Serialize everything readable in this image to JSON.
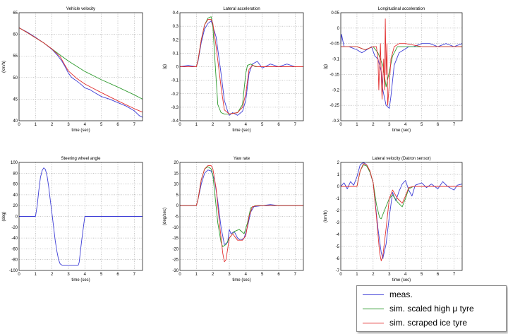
{
  "colors": {
    "meas": "#3d3dd6",
    "high": "#2e9a2e",
    "ice": "#e23030"
  },
  "legend": {
    "items": [
      {
        "label": "meas.",
        "color": "#3d3dd6"
      },
      {
        "label": "sim. scaled high μ tyre",
        "color": "#2e9a2e"
      },
      {
        "label": "sim. scraped ice tyre",
        "color": "#e23030"
      }
    ]
  },
  "chart_data": [
    {
      "type": "line",
      "title": "Vehicle velocity",
      "xlabel": "time (sec)",
      "ylabel": "(km/h)",
      "xlim": [
        0,
        7.5
      ],
      "ylim": [
        40,
        65
      ],
      "xticks": [
        0,
        1,
        2,
        3,
        4,
        5,
        6,
        7
      ],
      "yticks": [
        40,
        45,
        50,
        55,
        60,
        65
      ],
      "grid": true,
      "series": [
        {
          "key": "meas",
          "x": [
            0,
            0.5,
            1,
            1.5,
            2,
            2.3,
            2.6,
            2.8,
            3,
            3.2,
            3.5,
            3.8,
            4,
            4.3,
            4.6,
            5,
            5.5,
            6,
            6.5,
            7,
            7.3,
            7.5
          ],
          "y": [
            61.5,
            60.5,
            59.3,
            58,
            56.5,
            55.3,
            53.8,
            52.5,
            51,
            50,
            49.2,
            48.3,
            47.6,
            47.2,
            46.5,
            45.6,
            45,
            44.2,
            43.4,
            42.3,
            41.2,
            40.8
          ]
        },
        {
          "key": "high",
          "x": [
            0,
            0.5,
            1,
            1.5,
            2,
            2.5,
            3,
            3.5,
            4,
            5,
            6,
            7,
            7.5
          ],
          "y": [
            61.5,
            60.4,
            59.2,
            58,
            56.6,
            55.2,
            53.8,
            52.6,
            51.4,
            49.5,
            47.8,
            46,
            45
          ]
        },
        {
          "key": "ice",
          "x": [
            0,
            0.5,
            1,
            1.5,
            2,
            2.5,
            2.8,
            3,
            3.5,
            4,
            5,
            6,
            7,
            7.5
          ],
          "y": [
            61.5,
            60.4,
            59.2,
            58,
            56.6,
            54.8,
            52.8,
            51.5,
            49.8,
            48.5,
            46.5,
            44.6,
            42.8,
            42
          ]
        }
      ]
    },
    {
      "type": "line",
      "title": "Lateral acceleration",
      "xlabel": "time (sec)",
      "ylabel": "(g)",
      "xlim": [
        0,
        7.5
      ],
      "ylim": [
        -0.4,
        0.4
      ],
      "xticks": [
        0,
        1,
        2,
        3,
        4,
        5,
        6,
        7
      ],
      "yticks": [
        -0.4,
        -0.3,
        -0.2,
        -0.1,
        0,
        0.1,
        0.2,
        0.3,
        0.4
      ],
      "grid": true,
      "series": [
        {
          "key": "meas",
          "x": [
            0,
            0.5,
            1,
            1.1,
            1.3,
            1.5,
            1.7,
            1.9,
            2.0,
            2.2,
            2.5,
            2.7,
            2.9,
            3.0,
            3.2,
            3.5,
            3.8,
            4.0,
            4.2,
            4.4,
            4.7,
            5.0,
            5.5,
            6,
            6.5,
            7,
            7.5
          ],
          "y": [
            0,
            0.01,
            0,
            0.04,
            0.18,
            0.28,
            0.32,
            0.34,
            0.3,
            0.22,
            -0.05,
            -0.25,
            -0.33,
            -0.36,
            -0.34,
            -0.36,
            -0.33,
            -0.25,
            -0.05,
            0.02,
            0.04,
            -0.01,
            0.02,
            0,
            0.02,
            0,
            0
          ]
        },
        {
          "key": "high",
          "x": [
            0,
            1,
            1.1,
            1.3,
            1.5,
            1.7,
            1.9,
            2.0,
            2.15,
            2.3,
            2.5,
            2.7,
            3,
            3.5,
            3.8,
            4.0,
            4.1,
            4.3,
            4.6,
            5,
            7.5
          ],
          "y": [
            0,
            0,
            0.05,
            0.2,
            0.31,
            0.36,
            0.37,
            0.3,
            0,
            -0.28,
            -0.34,
            -0.35,
            -0.35,
            -0.34,
            -0.28,
            -0.05,
            0.01,
            0.02,
            0,
            0,
            0
          ]
        },
        {
          "key": "ice",
          "x": [
            0,
            1,
            1.1,
            1.3,
            1.5,
            1.7,
            1.9,
            2.0,
            2.2,
            2.5,
            2.7,
            3,
            3.5,
            3.8,
            4.0,
            4.2,
            4.4,
            4.7,
            5,
            7.5
          ],
          "y": [
            0,
            0,
            0.05,
            0.2,
            0.31,
            0.35,
            0.35,
            0.32,
            0.15,
            -0.15,
            -0.32,
            -0.35,
            -0.34,
            -0.3,
            -0.2,
            -0.02,
            0.01,
            0,
            0,
            0
          ]
        }
      ]
    },
    {
      "type": "line",
      "title": "Longitudinal acceleration",
      "xlabel": "time (sec)",
      "ylabel": "(g)",
      "xlim": [
        0,
        7.5
      ],
      "ylim": [
        -0.3,
        0.05
      ],
      "xticks": [
        0,
        1,
        2,
        3,
        4,
        5,
        6,
        7
      ],
      "yticks": [
        -0.3,
        -0.25,
        -0.2,
        -0.15,
        -0.1,
        -0.05,
        0,
        0.05
      ],
      "grid": true,
      "series": [
        {
          "key": "meas",
          "x": [
            0,
            0.05,
            0.2,
            0.5,
            1.0,
            1.3,
            1.6,
            1.9,
            2.1,
            2.3,
            2.5,
            2.6,
            2.8,
            3.0,
            3.1,
            3.3,
            3.6,
            3.9,
            4.2,
            4.5,
            5,
            5.5,
            6,
            6.5,
            7,
            7.5
          ],
          "y": [
            -0.05,
            -0.02,
            -0.06,
            -0.06,
            -0.07,
            -0.08,
            -0.07,
            -0.06,
            -0.09,
            -0.1,
            -0.14,
            -0.2,
            -0.25,
            -0.26,
            -0.22,
            -0.12,
            -0.08,
            -0.07,
            -0.06,
            -0.06,
            -0.05,
            -0.05,
            -0.06,
            -0.05,
            -0.06,
            -0.05
          ]
        },
        {
          "key": "high",
          "x": [
            0,
            0.2,
            1,
            1.5,
            2,
            2.3,
            2.6,
            2.8,
            3.0,
            3.2,
            3.5,
            4,
            5,
            6,
            7,
            7.5
          ],
          "y": [
            -0.06,
            -0.06,
            -0.06,
            -0.07,
            -0.06,
            -0.08,
            -0.12,
            -0.19,
            -0.14,
            -0.09,
            -0.06,
            -0.06,
            -0.06,
            -0.06,
            -0.06,
            -0.06
          ]
        },
        {
          "key": "ice",
          "x": [
            0,
            1,
            1.5,
            2,
            2.2,
            2.3,
            2.35,
            2.45,
            2.5,
            2.55,
            2.65,
            2.7,
            2.75,
            2.8,
            2.85,
            2.9,
            3.0,
            3.1,
            3.3,
            3.6,
            4,
            5,
            6,
            7,
            7.5
          ],
          "y": [
            -0.06,
            -0.06,
            -0.07,
            -0.06,
            -0.06,
            -0.1,
            -0.2,
            -0.05,
            -0.15,
            -0.23,
            -0.1,
            -0.2,
            0.03,
            -0.15,
            -0.05,
            -0.25,
            -0.18,
            -0.1,
            -0.06,
            -0.05,
            -0.05,
            -0.06,
            -0.06,
            -0.06,
            -0.06
          ]
        }
      ]
    },
    {
      "type": "line",
      "title": "Steering wheel angle",
      "xlabel": "time (sec)",
      "ylabel": "(deg)",
      "xlim": [
        0,
        7.5
      ],
      "ylim": [
        -100,
        100
      ],
      "xticks": [
        0,
        1,
        2,
        3,
        4,
        5,
        6,
        7
      ],
      "yticks": [
        -100,
        -80,
        -60,
        -40,
        -20,
        0,
        20,
        40,
        60,
        80,
        100
      ],
      "grid": true,
      "series": [
        {
          "key": "meas",
          "x": [
            0,
            1.0,
            1.1,
            1.2,
            1.3,
            1.4,
            1.5,
            1.6,
            1.7,
            1.8,
            1.9,
            2.0,
            2.1,
            2.2,
            2.3,
            2.4,
            2.5,
            2.6,
            2.8,
            3.0,
            3.2,
            3.4,
            3.6,
            3.65,
            3.8,
            3.95,
            4.0,
            4.5,
            5,
            6,
            7,
            7.5
          ],
          "y": [
            0,
            0,
            20,
            48,
            72,
            85,
            90,
            87,
            75,
            55,
            30,
            5,
            -20,
            -45,
            -65,
            -80,
            -88,
            -90,
            -90,
            -90,
            -90,
            -90,
            -90,
            -85,
            -45,
            -10,
            0,
            0,
            0,
            0,
            0,
            0
          ]
        }
      ]
    },
    {
      "type": "line",
      "title": "Yaw rate",
      "xlabel": "time (sec)",
      "ylabel": "(deg/sec)",
      "xlim": [
        0,
        7.5
      ],
      "ylim": [
        -30,
        20
      ],
      "xticks": [
        0,
        1,
        2,
        3,
        4,
        5,
        6,
        7
      ],
      "yticks": [
        -30,
        -25,
        -20,
        -15,
        -10,
        -5,
        0,
        5,
        10,
        15,
        20
      ],
      "grid": true,
      "series": [
        {
          "key": "meas",
          "x": [
            0,
            0.5,
            1,
            1.1,
            1.3,
            1.5,
            1.7,
            1.9,
            2.1,
            2.3,
            2.5,
            2.7,
            2.9,
            3.0,
            3.1,
            3.3,
            3.5,
            3.7,
            3.9,
            4.1,
            4.3,
            4.5,
            5,
            5.5,
            6,
            6.5,
            7,
            7.5
          ],
          "y": [
            0,
            0,
            0,
            3,
            10,
            15,
            16.5,
            16,
            12,
            2,
            -10,
            -18,
            -17,
            -11,
            -13,
            -12,
            -15,
            -16,
            -15,
            -10,
            -3,
            -0.5,
            0,
            0.5,
            0,
            0,
            0,
            0
          ]
        },
        {
          "key": "high",
          "x": [
            0,
            1,
            1.1,
            1.3,
            1.5,
            1.7,
            1.9,
            2.0,
            2.1,
            2.3,
            2.5,
            2.6,
            2.8,
            3.0,
            3.3,
            3.6,
            3.9,
            4.1,
            4.3,
            4.6,
            5,
            7.5
          ],
          "y": [
            0,
            0,
            3,
            12,
            17,
            18,
            17,
            14,
            7,
            -8,
            -17,
            -19,
            -18,
            -15,
            -12,
            -11,
            -13,
            -8,
            -1,
            0,
            0,
            0
          ]
        },
        {
          "key": "ice",
          "x": [
            0,
            1,
            1.1,
            1.3,
            1.5,
            1.7,
            1.9,
            2.0,
            2.2,
            2.4,
            2.6,
            2.7,
            2.8,
            2.9,
            3.0,
            3.2,
            3.5,
            3.8,
            4.0,
            4.2,
            4.4,
            4.7,
            5,
            7.5
          ],
          "y": [
            0,
            0,
            3,
            12,
            17,
            18.5,
            18.5,
            17,
            8,
            -8,
            -22,
            -26,
            -25,
            -20,
            -15,
            -13,
            -16,
            -16,
            -14,
            -5,
            -0.5,
            0,
            0,
            0
          ]
        }
      ]
    },
    {
      "type": "line",
      "title": "Lateral velocity (Datron sensor)",
      "xlabel": "time (sec)",
      "ylabel": "(km/h)",
      "xlim": [
        0,
        7.5
      ],
      "ylim": [
        -7,
        2
      ],
      "xticks": [
        0,
        1,
        2,
        3,
        4,
        5,
        6,
        7
      ],
      "yticks": [
        -7,
        -6,
        -5,
        -4,
        -3,
        -2,
        -1,
        0,
        1,
        2
      ],
      "grid": true,
      "series": [
        {
          "key": "meas",
          "x": [
            0,
            0.2,
            0.4,
            0.6,
            0.8,
            1.0,
            1.2,
            1.4,
            1.6,
            1.8,
            2.0,
            2.1,
            2.3,
            2.5,
            2.6,
            2.8,
            3.0,
            3.2,
            3.4,
            3.6,
            3.8,
            4.0,
            4.2,
            4.4,
            4.6,
            5,
            5.3,
            5.6,
            6,
            6.3,
            6.6,
            7,
            7.2,
            7.5
          ],
          "y": [
            0,
            0.3,
            -0.2,
            0.4,
            0.1,
            0.8,
            1.8,
            2.0,
            1.8,
            1.2,
            0.3,
            -1.0,
            -3.5,
            -5.5,
            -6.0,
            -4.8,
            -2.5,
            -0.5,
            -1.2,
            -0.4,
            0.2,
            0.5,
            -0.3,
            -0.8,
            0.1,
            0.3,
            -0.1,
            0.2,
            -0.2,
            0.4,
            0,
            -0.3,
            0.1,
            0.2
          ]
        },
        {
          "key": "high",
          "x": [
            0,
            1,
            1.2,
            1.4,
            1.6,
            1.8,
            2.0,
            2.2,
            2.4,
            2.5,
            2.7,
            3.0,
            3.2,
            3.5,
            3.8,
            4.0,
            4.2,
            4.5,
            5,
            7.5
          ],
          "y": [
            0,
            0,
            1.3,
            1.8,
            1.7,
            1.2,
            0.3,
            -1.5,
            -2.6,
            -2.7,
            -2.0,
            -1.0,
            -0.7,
            -1.3,
            -1.7,
            -1.0,
            -0.2,
            0,
            0,
            0
          ]
        },
        {
          "key": "ice",
          "x": [
            0,
            1,
            1.2,
            1.4,
            1.6,
            1.8,
            2.0,
            2.2,
            2.4,
            2.5,
            2.6,
            2.8,
            3.0,
            3.2,
            3.5,
            3.8,
            4.0,
            4.2,
            4.5,
            5,
            7.5
          ],
          "y": [
            0,
            0,
            1.3,
            1.9,
            1.8,
            1.3,
            0.3,
            -2.5,
            -5.5,
            -6.2,
            -5.8,
            -3.5,
            -1.0,
            -0.3,
            -1.0,
            -1.4,
            -0.8,
            -0.1,
            0,
            0,
            0
          ]
        }
      ]
    }
  ]
}
